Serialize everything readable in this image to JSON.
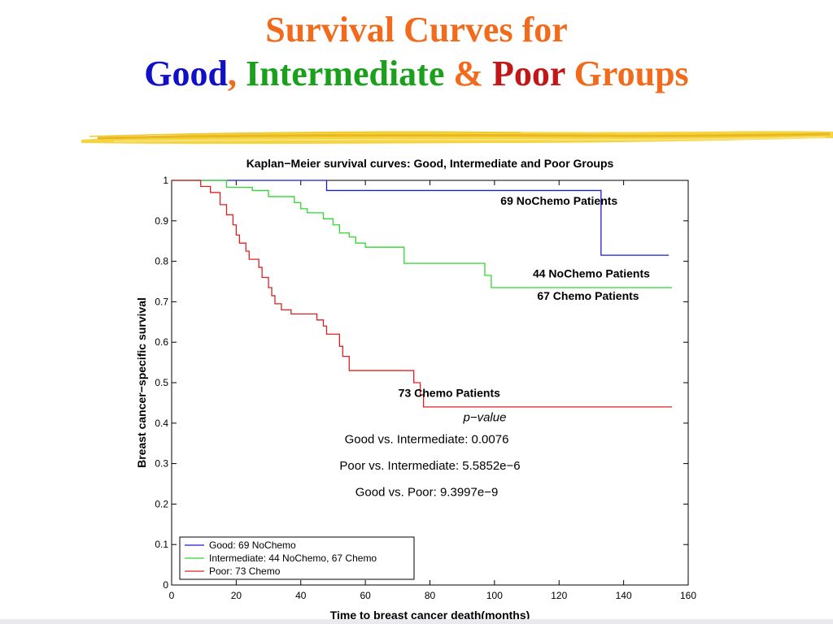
{
  "slide": {
    "title_line1": "Survival Curves for",
    "title_parts": [
      {
        "text": "Good",
        "color": "#1010c8"
      },
      {
        "text": ", ",
        "color": "#f26a1b"
      },
      {
        "text": "Intermediate",
        "color": "#1aa01a"
      },
      {
        "text": " & ",
        "color": "#f26a1b"
      },
      {
        "text": "Poor",
        "color": "#c01818"
      },
      {
        "text": " Groups",
        "color": "#f26a1b"
      }
    ],
    "title_color": "#f26a1b"
  },
  "chart_data": {
    "type": "line",
    "title": "Kaplan−Meier survival curves: Good, Intermediate and Poor Groups",
    "xlabel": "Time to breast cancer death(months)",
    "ylabel": "Breast cancer−specific survival",
    "xlim": [
      0,
      160
    ],
    "ylim": [
      0,
      1
    ],
    "xticks": [
      0,
      20,
      40,
      60,
      80,
      100,
      120,
      140,
      160
    ],
    "yticks": [
      0,
      0.1,
      0.2,
      0.3,
      0.4,
      0.5,
      0.6,
      0.7,
      0.8,
      0.9,
      1
    ],
    "xtick_labels": [
      "0",
      "20",
      "40",
      "60",
      "80",
      "100",
      "120",
      "140",
      "160"
    ],
    "ytick_labels": [
      "0",
      "0.1",
      "0.2",
      "0.3",
      "0.4",
      "0.5",
      "0.6",
      "0.7",
      "0.8",
      "0.9",
      "1"
    ],
    "grid": false,
    "legend_position": "bottom-left",
    "series": [
      {
        "name": "Good: 69 NoChemo",
        "color": "#1c1cd0",
        "step": true,
        "x": [
          0,
          48,
          48,
          132,
          133,
          154
        ],
        "y": [
          1.0,
          1.0,
          0.975,
          0.975,
          0.815,
          0.815
        ]
      },
      {
        "name": "Intermediate: 44 NoChemo, 67 Chemo",
        "color": "#2ed82e",
        "step": true,
        "x": [
          0,
          15,
          17,
          25,
          30,
          38,
          40,
          42,
          47,
          50,
          52,
          55,
          57,
          60,
          72,
          95,
          97,
          99,
          155
        ],
        "y": [
          1.0,
          1.0,
          0.983,
          0.975,
          0.96,
          0.945,
          0.93,
          0.92,
          0.905,
          0.89,
          0.87,
          0.86,
          0.845,
          0.835,
          0.795,
          0.795,
          0.765,
          0.735,
          0.735
        ]
      },
      {
        "name": "Poor: 73 Chemo",
        "color": "#e02020",
        "step": true,
        "x": [
          0,
          7,
          9,
          12,
          15,
          17,
          19,
          20,
          21,
          23,
          24,
          27,
          28,
          30,
          31,
          32,
          34,
          37,
          41,
          45,
          47,
          48,
          52,
          53,
          55,
          65,
          73,
          75,
          77,
          78,
          155
        ],
        "y": [
          1.0,
          1.0,
          0.985,
          0.97,
          0.94,
          0.915,
          0.89,
          0.865,
          0.845,
          0.825,
          0.805,
          0.785,
          0.76,
          0.735,
          0.715,
          0.695,
          0.68,
          0.67,
          0.67,
          0.655,
          0.64,
          0.62,
          0.59,
          0.565,
          0.53,
          0.53,
          0.53,
          0.5,
          0.47,
          0.44,
          0.44
        ]
      }
    ],
    "annotations": [
      {
        "text": "69 NoChemo Patients",
        "x": 120,
        "y": 0.94,
        "bold": true
      },
      {
        "text": "44 NoChemo Patients",
        "x": 130,
        "y": 0.76,
        "bold": true
      },
      {
        "text": "67 Chemo Patients",
        "x": 129,
        "y": 0.705,
        "bold": true
      },
      {
        "text": "73 Chemo Patients",
        "x": 86,
        "y": 0.465,
        "bold": true
      },
      {
        "text": "p−value",
        "x": 97,
        "y": 0.405,
        "italic": true
      },
      {
        "text": "Good vs. Intermediate: 0.0076",
        "x": 79,
        "y": 0.35
      },
      {
        "text": "Poor vs. Intermediate: 5.5852e−6",
        "x": 80,
        "y": 0.285
      },
      {
        "text": "Good vs. Poor: 9.3997e−9",
        "x": 79,
        "y": 0.22
      }
    ]
  }
}
